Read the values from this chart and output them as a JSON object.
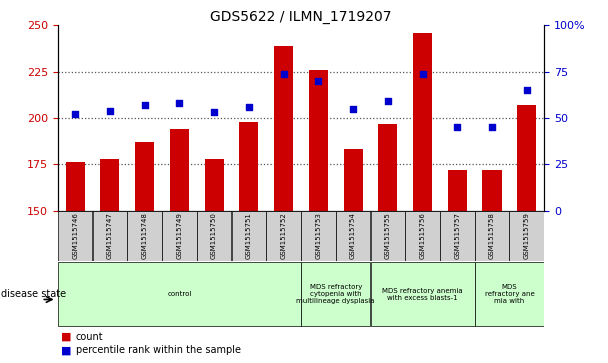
{
  "title": "GDS5622 / ILMN_1719207",
  "samples": [
    "GSM1515746",
    "GSM1515747",
    "GSM1515748",
    "GSM1515749",
    "GSM1515750",
    "GSM1515751",
    "GSM1515752",
    "GSM1515753",
    "GSM1515754",
    "GSM1515755",
    "GSM1515756",
    "GSM1515757",
    "GSM1515758",
    "GSM1515759"
  ],
  "counts": [
    176,
    178,
    187,
    194,
    178,
    198,
    239,
    226,
    183,
    197,
    246,
    172,
    172,
    207
  ],
  "percentiles": [
    52,
    54,
    57,
    58,
    53,
    56,
    74,
    70,
    55,
    59,
    74,
    45,
    45,
    65
  ],
  "ylim_left": [
    150,
    250
  ],
  "ylim_right": [
    0,
    100
  ],
  "yticks_left": [
    150,
    175,
    200,
    225,
    250
  ],
  "yticks_right": [
    0,
    25,
    50,
    75,
    100
  ],
  "bar_color": "#cc0000",
  "dot_color": "#0000cc",
  "bar_width": 0.55,
  "group_configs": [
    {
      "start": 0,
      "end": 7,
      "label": "control"
    },
    {
      "start": 7,
      "end": 9,
      "label": "MDS refractory\ncytopenia with\nmultilineage dysplasia"
    },
    {
      "start": 9,
      "end": 12,
      "label": "MDS refractory anemia\nwith excess blasts-1"
    },
    {
      "start": 12,
      "end": 14,
      "label": "MDS\nrefractory ane\nmia with"
    }
  ],
  "group_color": "#ccffcc",
  "sample_box_color": "#d0d0d0",
  "disease_state_label": "disease state",
  "legend_count": "count",
  "legend_percentile": "percentile rank within the sample",
  "bar_color_hex": "#cc0000",
  "dot_color_hex": "#0000cc",
  "grid_color": "#555555",
  "title_fontsize": 10,
  "tick_fontsize": 8,
  "sample_fontsize": 5,
  "group_fontsize": 5,
  "legend_fontsize": 7
}
